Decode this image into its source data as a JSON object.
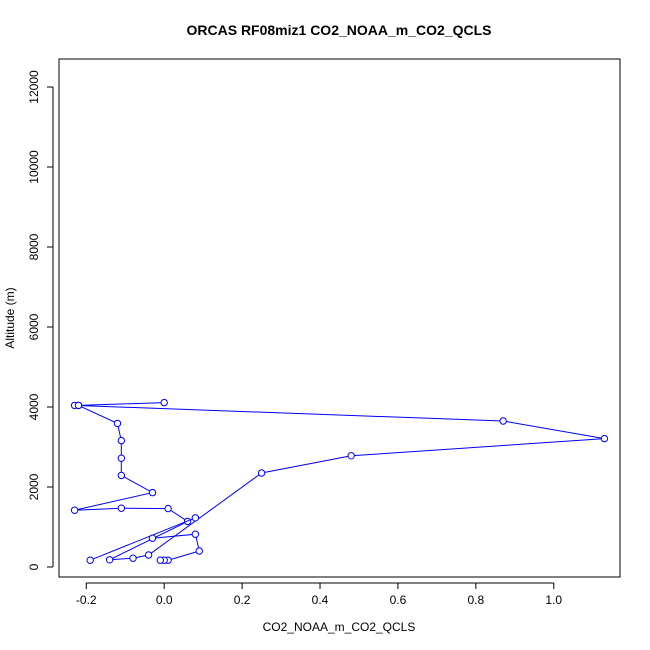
{
  "chart_data": {
    "type": "line",
    "title": "ORCAS RF08miz1 CO2_NOAA_m_CO2_QCLS",
    "xlabel": "CO2_NOAA_m_CO2_QCLS",
    "ylabel": "Altitude (m)",
    "xlim": [
      -0.27,
      1.17
    ],
    "ylim": [
      -250,
      12700
    ],
    "xticks": [
      -0.2,
      0.0,
      0.2,
      0.4,
      0.6,
      0.8,
      1.0
    ],
    "xtick_labels": [
      "-0.2",
      "0.0",
      "0.2",
      "0.4",
      "0.6",
      "0.8",
      "1.0"
    ],
    "yticks": [
      0,
      2000,
      4000,
      6000,
      8000,
      10000,
      12000
    ],
    "ytick_labels": [
      "0",
      "2000",
      "4000",
      "6000",
      "8000",
      "10000",
      "12000"
    ],
    "grid": false,
    "series": [
      {
        "color": "#0000ff",
        "marker": "open-circle",
        "points": [
          {
            "x": 0.0,
            "y": 4110
          },
          {
            "x": -0.22,
            "y": 4040
          },
          {
            "x": -0.23,
            "y": 4040
          },
          {
            "x": 0.87,
            "y": 3650
          },
          {
            "x": 1.13,
            "y": 3210
          },
          {
            "x": 0.48,
            "y": 2780
          },
          {
            "x": 0.25,
            "y": 2350
          },
          {
            "x": -0.04,
            "y": 300
          },
          {
            "x": -0.08,
            "y": 220
          },
          {
            "x": -0.14,
            "y": 180
          },
          {
            "x": 0.06,
            "y": 1140
          },
          {
            "x": 0.01,
            "y": 1460
          },
          {
            "x": -0.11,
            "y": 1470
          },
          {
            "x": -0.23,
            "y": 1420
          },
          {
            "x": -0.03,
            "y": 1860
          },
          {
            "x": -0.11,
            "y": 2290
          },
          {
            "x": -0.11,
            "y": 2720
          },
          {
            "x": -0.11,
            "y": 3160
          },
          {
            "x": -0.12,
            "y": 3590
          },
          {
            "x": -0.22,
            "y": 4040
          }
        ]
      },
      {
        "color": "#0000ff",
        "marker": "open-circle",
        "points": [
          {
            "x": 0.08,
            "y": 1230
          },
          {
            "x": -0.19,
            "y": 170
          }
        ]
      },
      {
        "color": "#0000ff",
        "marker": "open-circle",
        "points": [
          {
            "x": -0.03,
            "y": 720
          },
          {
            "x": 0.08,
            "y": 820
          },
          {
            "x": 0.09,
            "y": 400
          },
          {
            "x": 0.01,
            "y": 170
          },
          {
            "x": 0.0,
            "y": 170
          },
          {
            "x": -0.01,
            "y": 170
          }
        ]
      }
    ]
  }
}
